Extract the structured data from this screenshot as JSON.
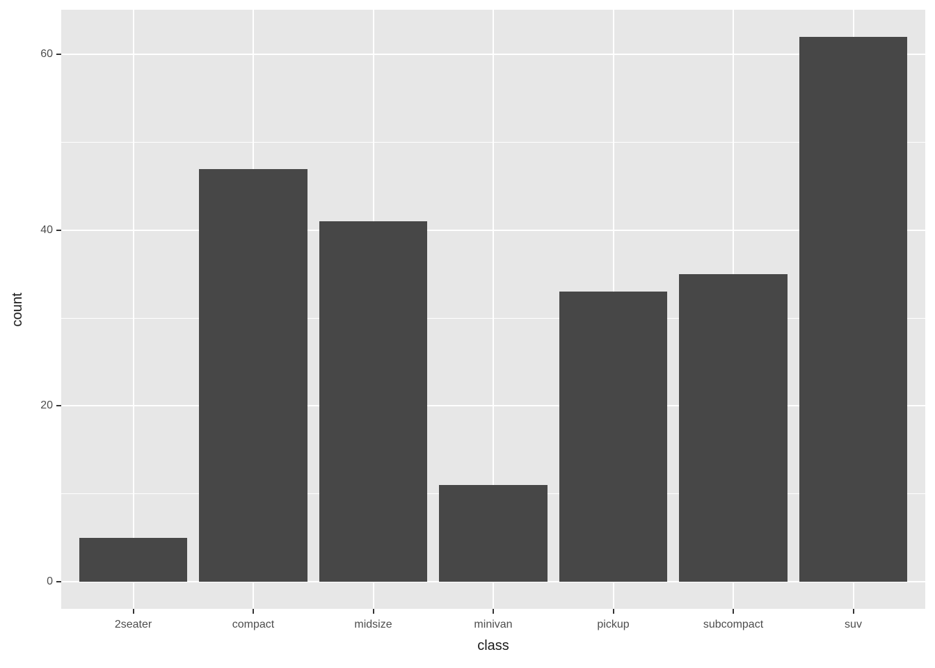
{
  "figure": {
    "background": "#FFFFFF"
  },
  "chart_data": {
    "type": "bar",
    "title": "",
    "categories": [
      "2seater",
      "compact",
      "midsize",
      "minivan",
      "pickup",
      "subcompact",
      "suv"
    ],
    "values": [
      5,
      47,
      41,
      11,
      33,
      35,
      62
    ],
    "xlabel": "class",
    "ylabel": "count",
    "y_ticks": [
      0,
      20,
      40,
      60
    ],
    "y_minor_gridlines": [
      10,
      30,
      50
    ],
    "ylim": [
      -3.1,
      65.1
    ],
    "bar_relative_width": 0.9,
    "x_expansion_units": 0.6,
    "legend": "none",
    "grid": "on",
    "style": {
      "bar_fill": "#474747",
      "panel_background": "#E7E7E7",
      "gridline_color": "#FFFFFF",
      "tick_mark_color": "#333333",
      "tick_label_color": "#4D4D4D",
      "axis_title_color": "#1A1A1A"
    }
  }
}
